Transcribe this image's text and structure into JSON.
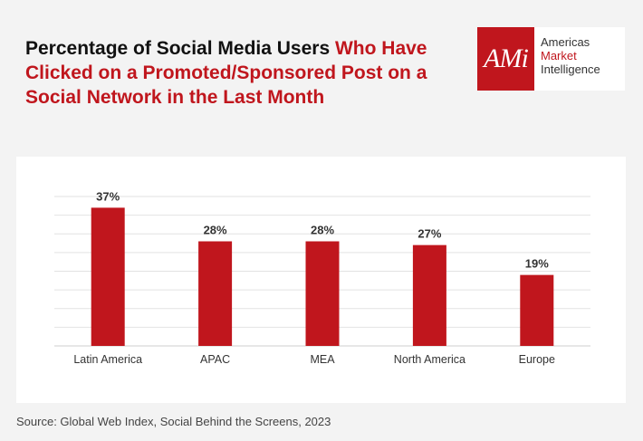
{
  "title": {
    "part1": "Percentage of Social Media Users ",
    "part2": "Who Have Clicked on a Promoted/Sponsored Post on a Social Network in the Last Month"
  },
  "logo": {
    "mark": "AMi",
    "line1": "Americas",
    "line2": "Market",
    "line3": "Intelligence"
  },
  "chart_data": {
    "type": "bar",
    "title": "Percentage of Social Media Users Who Have Clicked on a Promoted/Sponsored Post on a Social Network in the Last Month",
    "categories": [
      "Latin America",
      "APAC",
      "MEA",
      "North America",
      "Europe"
    ],
    "values": [
      37,
      28,
      28,
      27,
      19
    ],
    "value_labels": [
      "37%",
      "28%",
      "28%",
      "27%",
      "19%"
    ],
    "ylim": [
      0,
      40
    ],
    "grid": true,
    "bar_color": "#c0161d",
    "xlabel": "",
    "ylabel": ""
  },
  "source": "Source: Global Web Index, Social Behind the Screens, 2023"
}
